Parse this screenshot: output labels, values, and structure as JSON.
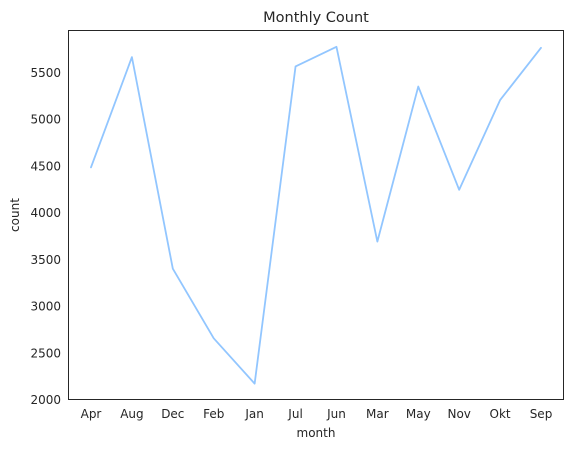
{
  "chart_data": {
    "type": "line",
    "title": "Monthly Count",
    "xlabel": "month",
    "ylabel": "count",
    "categories": [
      "Apr",
      "Aug",
      "Dec",
      "Feb",
      "Jan",
      "Jul",
      "Jun",
      "Mar",
      "May",
      "Nov",
      "Okt",
      "Sep"
    ],
    "values": [
      4485,
      5665,
      3400,
      2655,
      2170,
      5565,
      5775,
      3690,
      5350,
      4245,
      5205,
      5765
    ],
    "ylim": [
      2000,
      5950
    ],
    "yticks": [
      2000,
      2500,
      3000,
      3500,
      4000,
      4500,
      5000,
      5500
    ],
    "line_color": "#92c6ff",
    "grid": false,
    "legend": "none"
  }
}
